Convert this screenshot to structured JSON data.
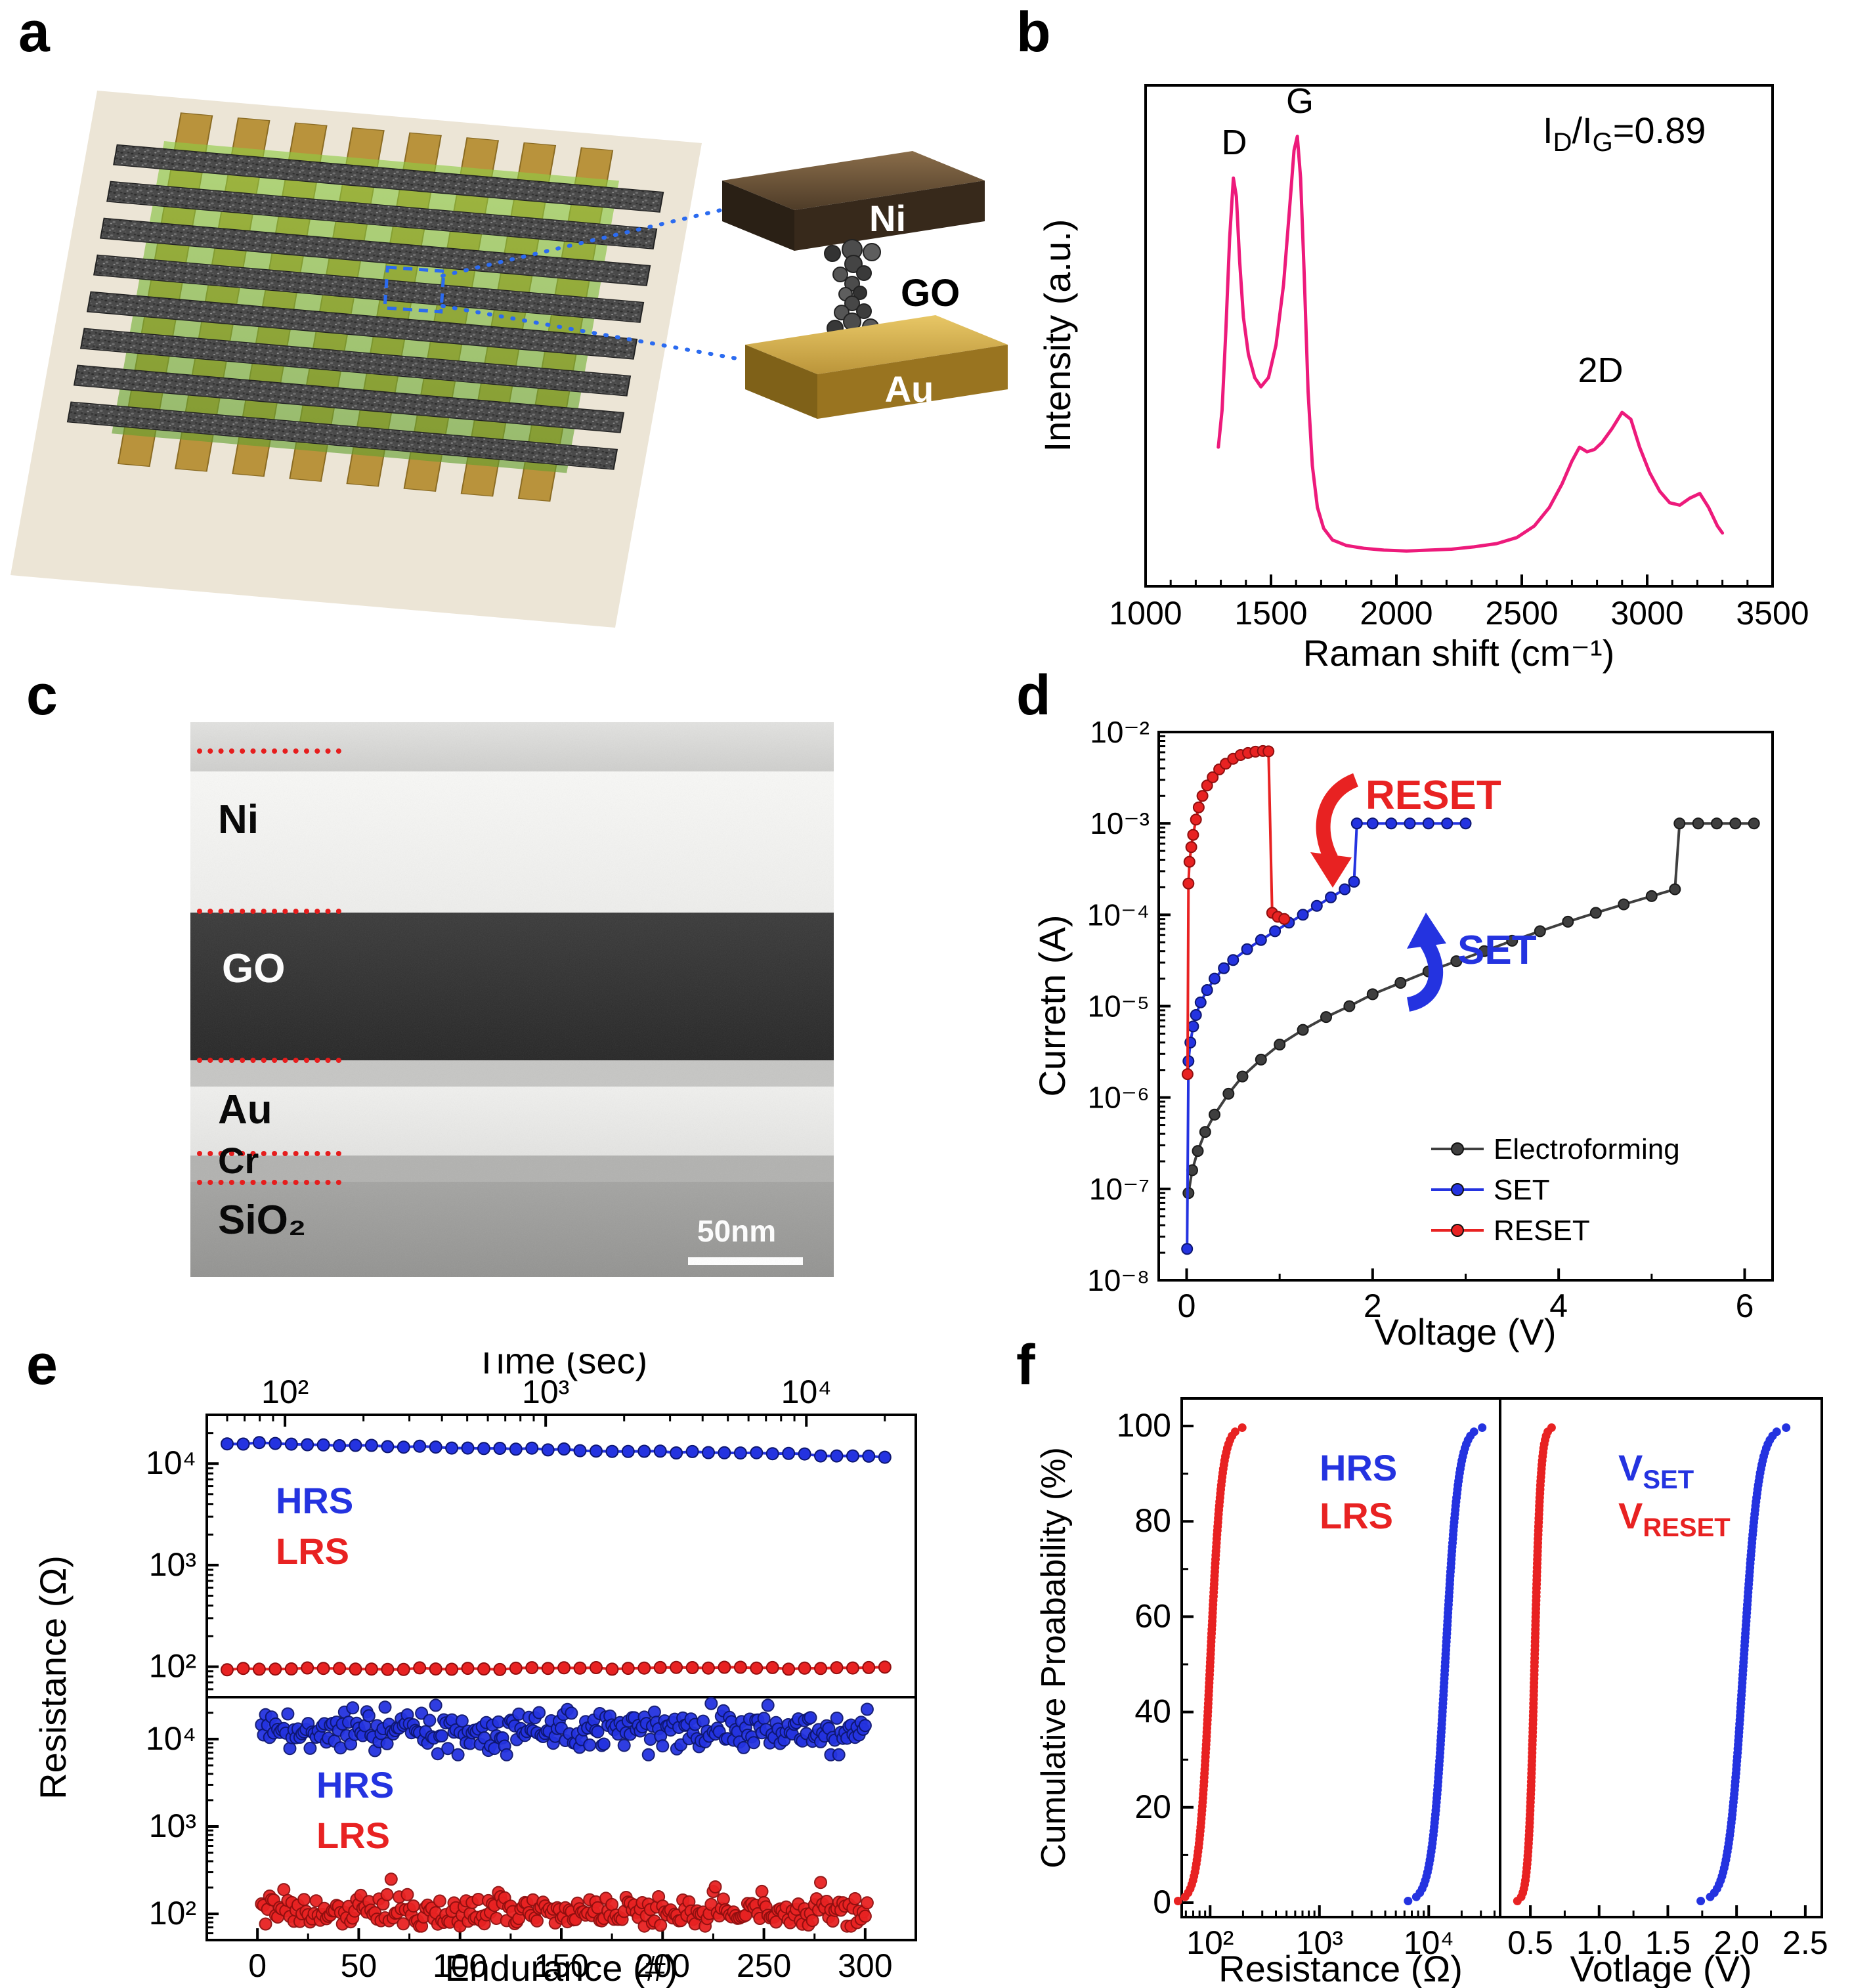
{
  "panels": {
    "a": "a",
    "b": "b",
    "c": "c",
    "d": "d",
    "e": "e",
    "f": "f"
  },
  "panel_a": {
    "ni": "Ni",
    "go": "GO",
    "au": "Au"
  },
  "panel_c": {
    "ni": "Ni",
    "go": "GO",
    "au": "Au",
    "cr": "Cr",
    "sio2": "SiO₂",
    "scale": "50nm"
  },
  "panel_e": {
    "hrs": "HRS",
    "lrs": "LRS"
  },
  "panel_f": {
    "hrs": "HRS",
    "lrs": "LRS",
    "vset_main": "V",
    "vset_sub": "SET",
    "vreset_main": "V",
    "vreset_sub": "RESET"
  },
  "chart_data": {
    "raman": {
      "type": "line",
      "xlabel": "Raman shift (cm⁻¹)",
      "ylabel": "Intensity (a.u.)",
      "xlim": [
        1000,
        3500
      ],
      "ylim": [
        0,
        1.08
      ],
      "xticks": [
        1000,
        1500,
        2000,
        2500,
        3000,
        3500
      ],
      "line_color": "#ed1a7b",
      "peak_labels": {
        "d": "D",
        "g": "G",
        "two_d": "2D"
      },
      "ratio_label": {
        "p1": "I",
        "p2": "D",
        "p3": "/I",
        "p4": "G",
        "p5": "=0.89"
      },
      "points": [
        [
          1290,
          0.3
        ],
        [
          1305,
          0.38
        ],
        [
          1320,
          0.55
        ],
        [
          1335,
          0.75
        ],
        [
          1350,
          0.88
        ],
        [
          1362,
          0.84
        ],
        [
          1375,
          0.7
        ],
        [
          1390,
          0.58
        ],
        [
          1410,
          0.5
        ],
        [
          1435,
          0.45
        ],
        [
          1460,
          0.43
        ],
        [
          1490,
          0.45
        ],
        [
          1520,
          0.52
        ],
        [
          1550,
          0.65
        ],
        [
          1575,
          0.82
        ],
        [
          1592,
          0.94
        ],
        [
          1605,
          0.97
        ],
        [
          1618,
          0.88
        ],
        [
          1632,
          0.68
        ],
        [
          1648,
          0.42
        ],
        [
          1665,
          0.26
        ],
        [
          1685,
          0.17
        ],
        [
          1710,
          0.125
        ],
        [
          1745,
          0.1
        ],
        [
          1800,
          0.088
        ],
        [
          1870,
          0.082
        ],
        [
          1950,
          0.078
        ],
        [
          2040,
          0.076
        ],
        [
          2130,
          0.078
        ],
        [
          2220,
          0.08
        ],
        [
          2310,
          0.085
        ],
        [
          2400,
          0.092
        ],
        [
          2480,
          0.105
        ],
        [
          2550,
          0.13
        ],
        [
          2610,
          0.17
        ],
        [
          2660,
          0.22
        ],
        [
          2700,
          0.27
        ],
        [
          2730,
          0.3
        ],
        [
          2760,
          0.29
        ],
        [
          2790,
          0.295
        ],
        [
          2820,
          0.31
        ],
        [
          2860,
          0.34
        ],
        [
          2900,
          0.375
        ],
        [
          2935,
          0.36
        ],
        [
          2970,
          0.3
        ],
        [
          3010,
          0.245
        ],
        [
          3050,
          0.205
        ],
        [
          3090,
          0.18
        ],
        [
          3130,
          0.175
        ],
        [
          3170,
          0.19
        ],
        [
          3210,
          0.2
        ],
        [
          3245,
          0.17
        ],
        [
          3280,
          0.13
        ],
        [
          3300,
          0.115
        ]
      ]
    },
    "iv": {
      "type": "scatter-line",
      "xlabel": "Voltage (V)",
      "ylabel": "Curretn (A)",
      "xlim": [
        -0.3,
        6.3
      ],
      "xticks": [
        0,
        2,
        4,
        6
      ],
      "ylog_range": [
        -8,
        -2
      ],
      "ytick_labels": [
        "10⁻²",
        "10⁻³",
        "10⁻⁴",
        "10⁻⁵",
        "10⁻⁶",
        "10⁻⁷",
        "10⁻⁸"
      ],
      "annotations": {
        "reset": "RESET",
        "set": "SET"
      },
      "legend": [
        {
          "label": "Electroforming",
          "color": "#3f3f3f"
        },
        {
          "label": "SET",
          "color": "#2433e0"
        },
        {
          "label": "RESET",
          "color": "#e82222"
        }
      ],
      "series": [
        {
          "name": "Electroforming",
          "color": "#3f3f3f",
          "edge": "#1a1a1a",
          "points": [
            [
              0.02,
              9e-08
            ],
            [
              0.06,
              1.6e-07
            ],
            [
              0.12,
              2.6e-07
            ],
            [
              0.2,
              4.2e-07
            ],
            [
              0.3,
              6.5e-07
            ],
            [
              0.45,
              1.1e-06
            ],
            [
              0.6,
              1.7e-06
            ],
            [
              0.8,
              2.6e-06
            ],
            [
              1.0,
              3.8e-06
            ],
            [
              1.25,
              5.5e-06
            ],
            [
              1.5,
              7.6e-06
            ],
            [
              1.75,
              1e-05
            ],
            [
              2.0,
              1.35e-05
            ],
            [
              2.3,
              1.8e-05
            ],
            [
              2.6,
              2.4e-05
            ],
            [
              2.9,
              3.1e-05
            ],
            [
              3.2,
              4e-05
            ],
            [
              3.5,
              5.2e-05
            ],
            [
              3.8,
              6.6e-05
            ],
            [
              4.1,
              8.4e-05
            ],
            [
              4.4,
              0.000105
            ],
            [
              4.7,
              0.00013
            ],
            [
              5.0,
              0.00016
            ],
            [
              5.25,
              0.00019
            ],
            [
              5.3,
              0.001
            ],
            [
              5.5,
              0.001
            ],
            [
              5.7,
              0.001
            ],
            [
              5.9,
              0.001
            ],
            [
              6.1,
              0.001
            ]
          ]
        },
        {
          "name": "SET",
          "color": "#2433e0",
          "edge": "#0d1670",
          "points": [
            [
              0.005,
              2.2e-08
            ],
            [
              0.02,
              2.5e-06
            ],
            [
              0.04,
              4e-06
            ],
            [
              0.07,
              6e-06
            ],
            [
              0.1,
              8e-06
            ],
            [
              0.15,
              1.1e-05
            ],
            [
              0.22,
              1.5e-05
            ],
            [
              0.3,
              2e-05
            ],
            [
              0.4,
              2.6e-05
            ],
            [
              0.5,
              3.2e-05
            ],
            [
              0.65,
              4.2e-05
            ],
            [
              0.8,
              5.3e-05
            ],
            [
              0.95,
              6.6e-05
            ],
            [
              1.1,
              8.2e-05
            ],
            [
              1.25,
              0.0001
            ],
            [
              1.4,
              0.000125
            ],
            [
              1.55,
              0.000155
            ],
            [
              1.7,
              0.00019
            ],
            [
              1.8,
              0.00023
            ],
            [
              1.83,
              0.001
            ],
            [
              2.0,
              0.001
            ],
            [
              2.2,
              0.001
            ],
            [
              2.4,
              0.001
            ],
            [
              2.6,
              0.001
            ],
            [
              2.8,
              0.001
            ],
            [
              3.0,
              0.001
            ]
          ]
        },
        {
          "name": "RESET",
          "color": "#e82222",
          "edge": "#8f0f0f",
          "points": [
            [
              0.01,
              1.8e-06
            ],
            [
              0.02,
              0.00022
            ],
            [
              0.03,
              0.00038
            ],
            [
              0.05,
              0.00055
            ],
            [
              0.07,
              0.00075
            ],
            [
              0.1,
              0.0011
            ],
            [
              0.13,
              0.0015
            ],
            [
              0.17,
              0.002
            ],
            [
              0.22,
              0.0026
            ],
            [
              0.28,
              0.0032
            ],
            [
              0.35,
              0.0039
            ],
            [
              0.42,
              0.0045
            ],
            [
              0.5,
              0.0051
            ],
            [
              0.58,
              0.0056
            ],
            [
              0.66,
              0.0059
            ],
            [
              0.74,
              0.0061
            ],
            [
              0.82,
              0.0062
            ],
            [
              0.88,
              0.00615
            ],
            [
              0.92,
              0.000105
            ],
            [
              0.98,
              9.5e-05
            ],
            [
              1.05,
              9e-05
            ]
          ]
        }
      ]
    },
    "retention": {
      "type": "scatter-line",
      "xlabel": "Time (sec)",
      "ylabel": "Resistance (Ω)",
      "xlog_range": [
        1.7,
        4.42
      ],
      "xticks": [
        2,
        3,
        4
      ],
      "xtick_labels": [
        "10²",
        "10³",
        "10⁴"
      ],
      "ylog_range": [
        1.7,
        4.48
      ],
      "yticks": [
        2,
        3,
        4
      ],
      "ytick_labels": [
        "10²",
        "10³",
        "10⁴"
      ],
      "series": [
        {
          "name": "HRS",
          "color": "#2433e0",
          "edge": "#0d1670",
          "start_level": 16000,
          "end_level": 11800,
          "count": 42
        },
        {
          "name": "LRS",
          "color": "#e82222",
          "edge": "#8f0f0f",
          "start_level": 95,
          "end_level": 97,
          "count": 42
        }
      ]
    },
    "endurance": {
      "type": "scatter",
      "xlabel": "Endurance (#)",
      "xlim": [
        -25,
        325
      ],
      "xticks": [
        0,
        50,
        100,
        150,
        200,
        250,
        300
      ],
      "ylog_range": [
        1.7,
        4.48
      ],
      "yticks": [
        2,
        3,
        4
      ],
      "ytick_labels": [
        "10²",
        "10³",
        "10⁴"
      ],
      "cycles": 300,
      "series": [
        {
          "name": "HRS",
          "color": "#2433e0",
          "edge": "#0d1670",
          "median": 12500,
          "sigma_log": 0.12
        },
        {
          "name": "LRS",
          "color": "#e82222",
          "edge": "#8f0f0f",
          "median": 105,
          "sigma_log": 0.09
        }
      ]
    },
    "cdf": {
      "type": "cdf",
      "ylabel": "Cumulative Proabability (%)",
      "yticks": [
        0,
        20,
        40,
        60,
        80,
        100
      ],
      "left": {
        "xlabel": "Resistance (Ω)",
        "xlog_range": [
          1.74,
          4.653
        ],
        "xticks": [
          2,
          3,
          4
        ],
        "xtick_labels": [
          "10²",
          "10³",
          "10⁴"
        ],
        "series": [
          {
            "name": "LRS",
            "color": "#e82222",
            "log_median": 2.0,
            "log_spread": 0.052
          },
          {
            "name": "HRS",
            "color": "#2433e0",
            "log_median": 4.15,
            "log_spread": 0.06
          }
        ]
      },
      "right": {
        "xlabel": "Votlage (V)",
        "xlim": [
          0.28,
          2.62
        ],
        "xticks": [
          0.5,
          1.0,
          1.5,
          2.0,
          2.5
        ],
        "series": [
          {
            "name": "V_RESET",
            "color": "#e82222",
            "median": 0.53,
            "spread": 0.022
          },
          {
            "name": "V_SET",
            "color": "#2433e0",
            "median": 2.05,
            "spread": 0.055
          }
        ]
      }
    }
  }
}
